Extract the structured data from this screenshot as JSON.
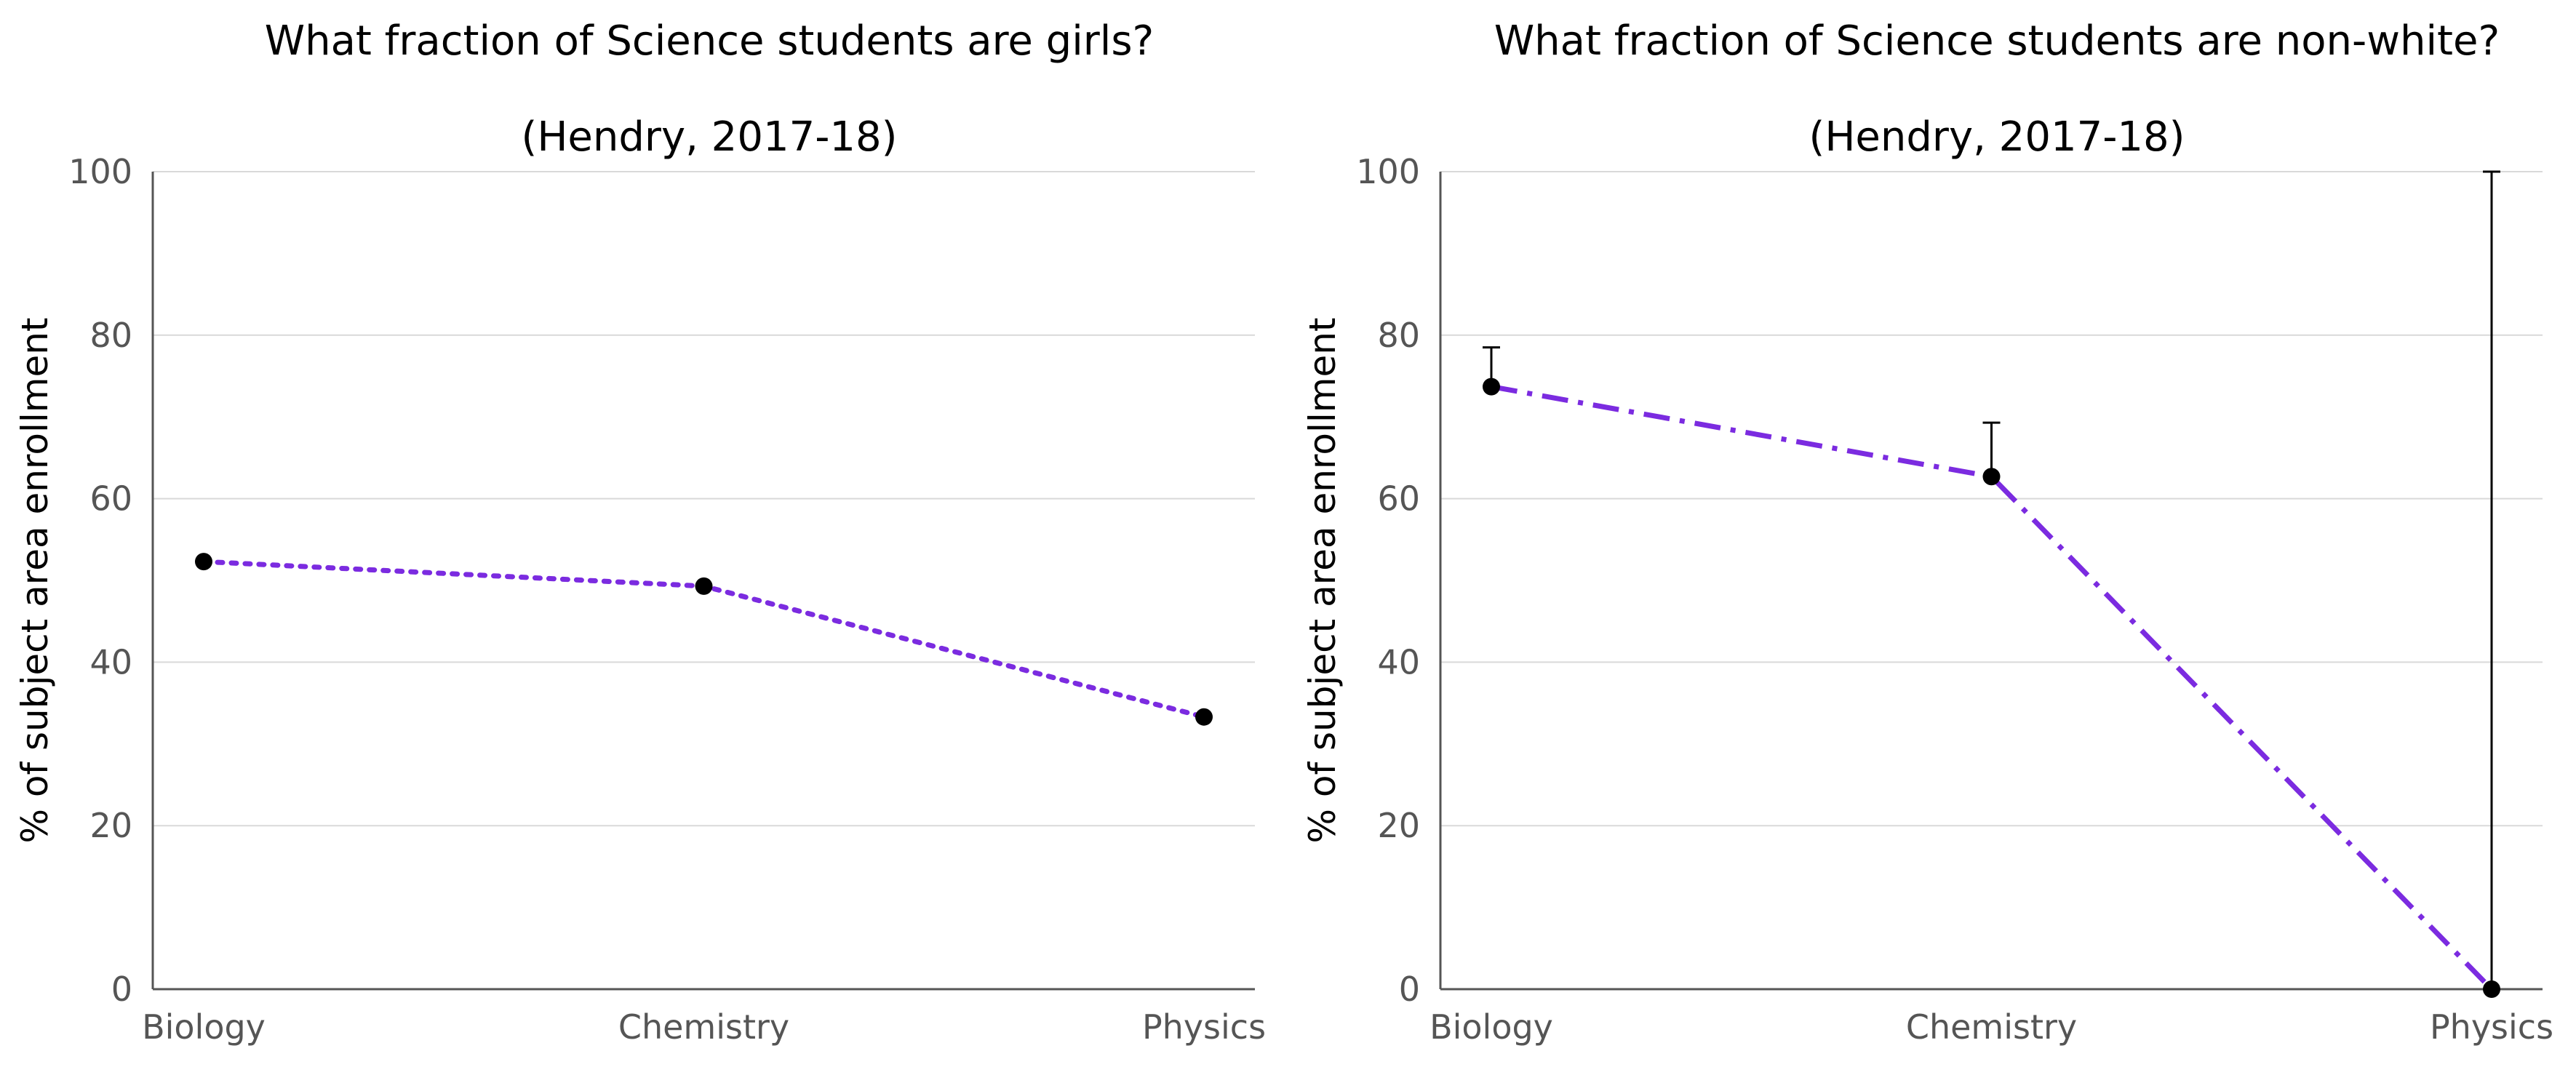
{
  "chart_data": [
    {
      "type": "line",
      "title": "What fraction of Science students are girls?",
      "subtitle": "(Hendry, 2017-18)",
      "ylabel": "% of subject area enrollment",
      "xlabel": "",
      "categories": [
        "Biology",
        "Chemistry",
        "Physics"
      ],
      "series": [
        {
          "values": [
            52.3,
            49.3,
            33.3
          ],
          "line_style": "dotted",
          "color": "#7b2be0",
          "marker_color": "#000000"
        }
      ],
      "ylim": [
        0,
        100
      ],
      "yticks": [
        0,
        20,
        40,
        60,
        80,
        100
      ],
      "grid": true
    },
    {
      "type": "line",
      "title": "What fraction of Science students are non-white?",
      "subtitle": "(Hendry, 2017-18)",
      "ylabel": "% of subject area enrollment",
      "xlabel": "",
      "categories": [
        "Biology",
        "Chemistry",
        "Physics"
      ],
      "series": [
        {
          "values": [
            73.7,
            62.7,
            0
          ],
          "error_upper": [
            78.5,
            69.3,
            100
          ],
          "line_style": "dash-dot",
          "color": "#7b2be0",
          "marker_color": "#000000"
        }
      ],
      "ylim": [
        0,
        100
      ],
      "yticks": [
        0,
        20,
        40,
        60,
        80,
        100
      ],
      "grid": true
    }
  ]
}
